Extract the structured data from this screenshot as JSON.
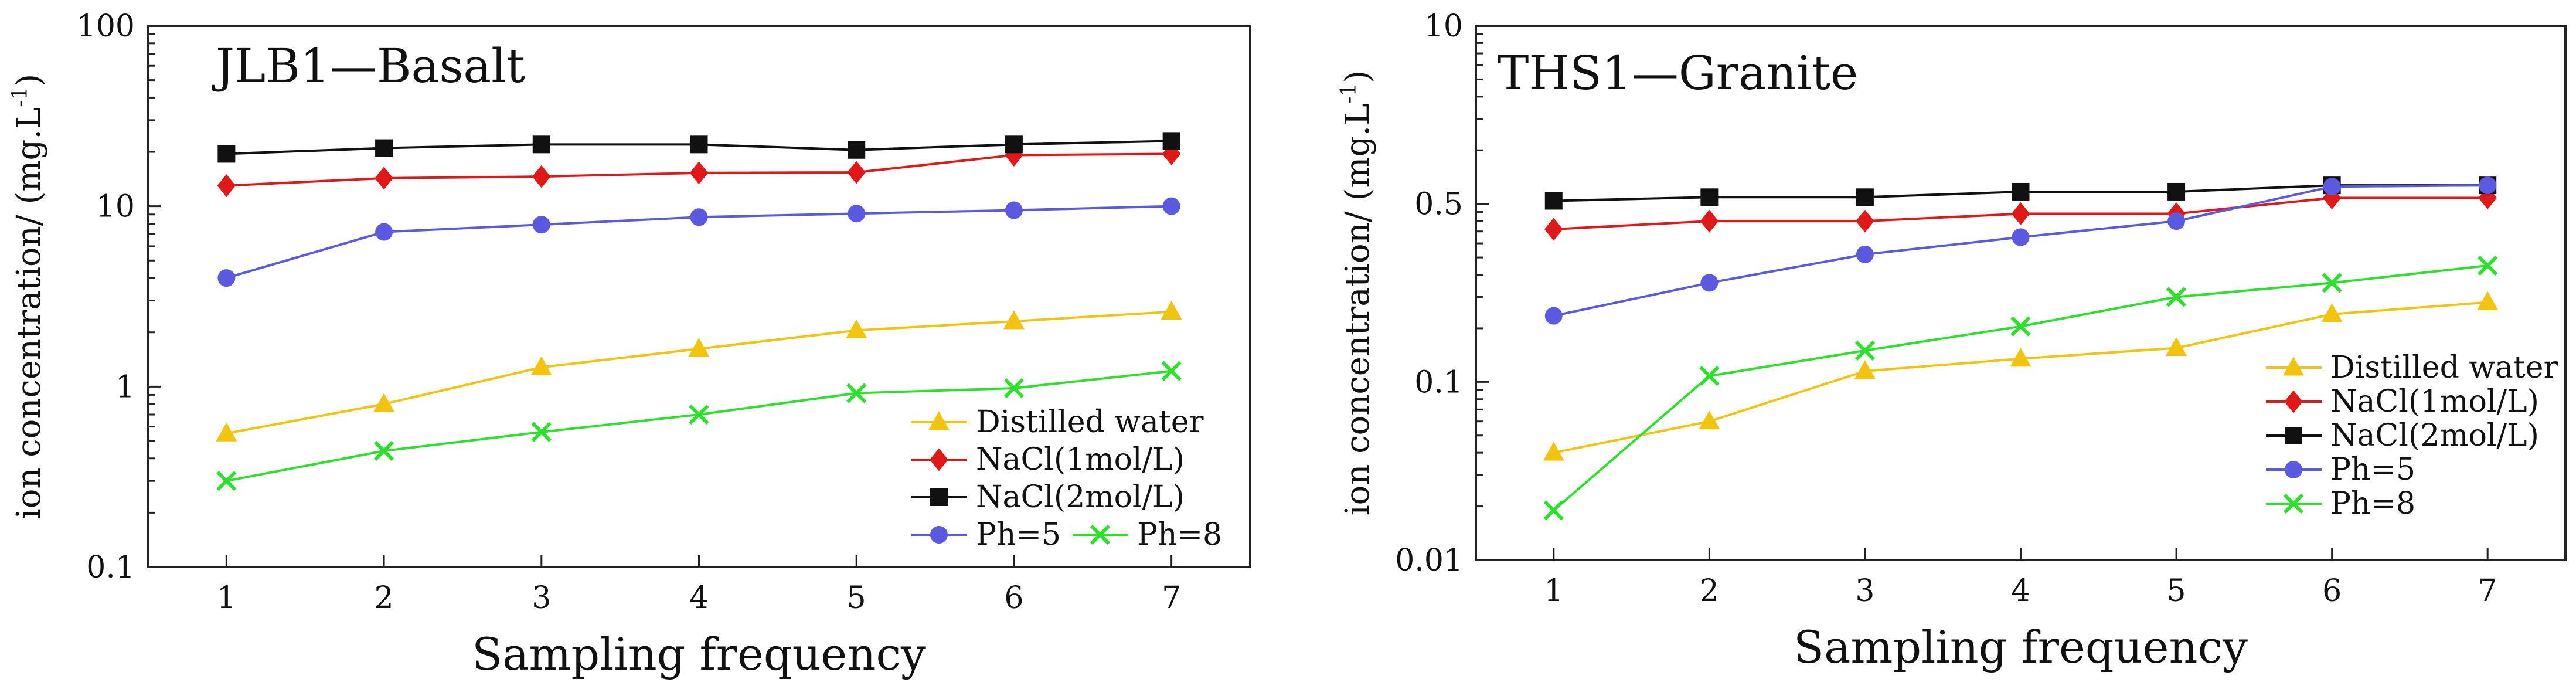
{
  "chart_data": [
    {
      "type": "line",
      "title": "JLB1—Basalt",
      "xlabel": "Sampling frequency",
      "ylabel": "ion concentration/ (mg.L",
      "ylabel_sup": "-1",
      "ylabel_close": ")",
      "yscale": "log",
      "ylim": [
        0.1,
        100
      ],
      "yticks": [
        0.1,
        1,
        10,
        100
      ],
      "ytick_labels": [
        "0.1",
        "1",
        "10",
        "100"
      ],
      "x": [
        1,
        2,
        3,
        4,
        5,
        6,
        7
      ],
      "xtick_labels": [
        "1",
        "2",
        "3",
        "4",
        "5",
        "6",
        "7"
      ],
      "xlim": [
        0.5,
        7.5
      ],
      "legend_position": "bottom-right",
      "series": [
        {
          "name": "Distilled water",
          "color": "#f2c40f",
          "marker": "triangle",
          "values": [
            0.55,
            0.8,
            1.28,
            1.62,
            2.05,
            2.3,
            2.6
          ]
        },
        {
          "name": "NaCl(1mol/L)",
          "color": "#e01818",
          "marker": "diamond",
          "values": [
            13.0,
            14.3,
            14.6,
            15.3,
            15.4,
            19.2,
            19.5
          ]
        },
        {
          "name": "NaCl(2mol/L)",
          "color": "#111111",
          "marker": "square",
          "values": [
            19.5,
            21.0,
            22.0,
            22.0,
            20.5,
            22.0,
            23.0
          ]
        },
        {
          "name": "Ph=5",
          "color": "#5a5ae0",
          "marker": "circle",
          "values": [
            4.0,
            7.2,
            7.9,
            8.7,
            9.1,
            9.5,
            10.0
          ]
        },
        {
          "name": "Ph=8",
          "color": "#2ee02e",
          "marker": "x",
          "values": [
            0.3,
            0.44,
            0.56,
            0.7,
            0.92,
            0.98,
            1.22
          ]
        }
      ]
    },
    {
      "type": "line",
      "title": "THS1—Granite",
      "xlabel": "Sampling frequency",
      "ylabel": "ion concentration/ (mg.L",
      "ylabel_sup": "-1",
      "ylabel_close": ")",
      "yscale": "log",
      "ylim": [
        0.01,
        10
      ],
      "yticks": [
        0.01,
        0.1,
        0.5,
        10
      ],
      "ytick_labels": [
        "0.01",
        "0.1",
        "0.5",
        "10"
      ],
      "ytick_values_on_axis": [
        0.01,
        0.1,
        1,
        10
      ],
      "x": [
        1,
        2,
        3,
        4,
        5,
        6,
        7
      ],
      "xtick_labels": [
        "1",
        "2",
        "3",
        "4",
        "5",
        "6",
        "7"
      ],
      "xlim": [
        0.5,
        7.5
      ],
      "legend_position": "right",
      "series": [
        {
          "name": "Distilled water",
          "color": "#f2c40f",
          "marker": "triangle",
          "values": [
            0.04,
            0.06,
            0.115,
            0.135,
            0.155,
            0.24,
            0.28
          ]
        },
        {
          "name": "NaCl(1mol/L)",
          "color": "#e01818",
          "marker": "diamond",
          "values": [
            0.72,
            0.8,
            0.8,
            0.88,
            0.88,
            1.08,
            1.08
          ]
        },
        {
          "name": "NaCl(2mol/L)",
          "color": "#111111",
          "marker": "square",
          "values": [
            1.04,
            1.09,
            1.09,
            1.17,
            1.17,
            1.27,
            1.27
          ]
        },
        {
          "name": "Ph=5",
          "color": "#5a5ae0",
          "marker": "circle",
          "values": [
            0.235,
            0.36,
            0.52,
            0.65,
            0.8,
            1.25,
            1.27
          ]
        },
        {
          "name": "Ph=8",
          "color": "#2ee02e",
          "marker": "x",
          "values": [
            0.019,
            0.108,
            0.15,
            0.205,
            0.3,
            0.36,
            0.45
          ]
        }
      ]
    }
  ]
}
